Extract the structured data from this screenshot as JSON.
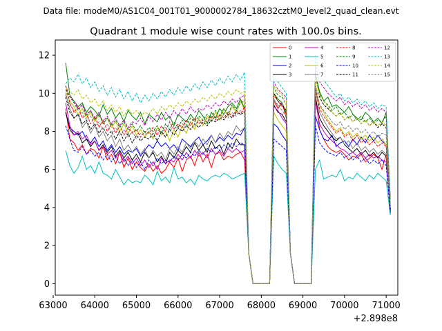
{
  "header": {
    "data_file": "Data file: modeM0/AS1C04_001T01_9000002784_18632cztM0_level2_quad_clean.evt"
  },
  "chart_data": {
    "type": "line",
    "title": "Quadrant 1 module wise count rates with 100.0s bins.",
    "xlabel": "",
    "ylabel": "",
    "x_offset_label": "+2.898e8",
    "xlim": [
      63050,
      71280
    ],
    "ylim": [
      -0.6,
      12.8
    ],
    "xticks": [
      63000,
      64000,
      65000,
      66000,
      67000,
      68000,
      69000,
      70000,
      71000
    ],
    "yticks": [
      0,
      2,
      4,
      6,
      8,
      10,
      12
    ],
    "x_start": 63300,
    "x_step": 100,
    "gap_segment_values": [
      1.6,
      0,
      0,
      0,
      0,
      0
    ],
    "gap_segment_start_index": 44,
    "legend_position": "top-right",
    "series": [
      {
        "name": "0",
        "color": "#ff0000",
        "dash": "solid",
        "seg1": [
          9.2,
          7.6,
          7.4,
          7.0,
          7.3,
          6.8,
          7.1,
          7.0,
          6.6,
          7.2,
          6.5,
          6.8,
          6.3,
          6.9,
          6.1,
          6.6,
          6.0,
          6.4,
          6.1,
          5.9,
          6.3,
          5.9,
          6.2,
          5.8,
          6.0,
          6.4,
          6.1,
          6.6,
          5.9,
          6.5,
          6.7,
          6.2,
          6.9,
          6.4,
          6.8,
          6.1,
          6.8,
          6.9,
          6.5,
          6.7,
          6.6,
          6.8,
          6.9,
          6.5
        ],
        "seg2": [
          9.6,
          9.2,
          9.5,
          8.7
        ],
        "seg3": [
          10.0,
          8.1,
          7.6,
          7.2,
          7.0,
          6.9,
          7.0,
          6.8,
          6.5,
          6.7,
          6.6,
          6.8,
          6.4,
          6.6,
          6.8,
          6.6,
          6.0,
          6.8,
          4.6
        ]
      },
      {
        "name": "1",
        "color": "#008000",
        "dash": "solid",
        "seg1": [
          11.6,
          9.9,
          9.6,
          9.3,
          9.5,
          9.0,
          9.3,
          9.1,
          8.8,
          9.4,
          8.9,
          9.2,
          8.7,
          9.0,
          8.5,
          9.1,
          8.8,
          8.6,
          9.0,
          8.4,
          8.9,
          8.7,
          8.5,
          9.0,
          8.6,
          8.8,
          8.3,
          8.9,
          8.7,
          8.5,
          8.9,
          8.6,
          9.1,
          8.8,
          8.4,
          9.0,
          8.7,
          9.2,
          8.9,
          9.3,
          9.5,
          9.2,
          9.7,
          9.2
        ],
        "seg2": [
          10.0,
          9.7,
          9.5,
          8.9
        ],
        "seg3": [
          11.0,
          10.1,
          9.6,
          9.8,
          9.3,
          9.4,
          9.2,
          9.0,
          9.3,
          8.9,
          8.7,
          8.6,
          9.0,
          8.8,
          8.5,
          8.7,
          8.4,
          9.0,
          3.8
        ]
      },
      {
        "name": "2",
        "color": "#0000ff",
        "dash": "solid",
        "seg1": [
          9.0,
          8.2,
          8.0,
          7.8,
          8.0,
          7.6,
          7.4,
          7.7,
          7.2,
          7.5,
          7.0,
          7.3,
          6.9,
          7.2,
          6.8,
          7.0,
          6.9,
          7.1,
          6.7,
          7.0,
          7.3,
          7.1,
          7.5,
          7.2,
          7.4,
          7.1,
          7.3,
          7.0,
          7.6,
          7.4,
          7.2,
          7.5,
          7.7,
          7.3,
          7.5,
          7.8,
          7.4,
          7.7,
          7.5,
          7.8,
          7.6,
          7.9,
          7.8,
          8.2
        ],
        "seg2": [
          8.4,
          8.2,
          7.8,
          7.5
        ],
        "seg3": [
          8.8,
          8.1,
          7.6,
          7.5,
          7.8,
          7.2,
          7.4,
          7.5,
          7.2,
          7.6,
          7.3,
          7.7,
          7.4,
          7.8,
          7.5,
          7.8,
          7.5,
          7.3,
          3.9
        ]
      },
      {
        "name": "3",
        "color": "#000000",
        "dash": "solid",
        "seg1": [
          9.0,
          8.1,
          7.8,
          7.9,
          7.4,
          7.6,
          7.2,
          7.5,
          7.0,
          7.3,
          6.9,
          7.2,
          6.7,
          7.0,
          6.6,
          6.9,
          6.5,
          6.8,
          6.4,
          6.9,
          6.6,
          6.9,
          6.4,
          6.7,
          6.3,
          6.9,
          6.6,
          7.0,
          6.8,
          7.2,
          6.9,
          7.4,
          7.0,
          7.3,
          6.9,
          7.5,
          7.1,
          7.3,
          6.8,
          7.4,
          7.1,
          7.6,
          7.3,
          7.3
        ],
        "seg2": [
          9.4,
          9.0,
          8.9,
          8.5
        ],
        "seg3": [
          9.8,
          8.7,
          8.3,
          8.0,
          7.7,
          7.5,
          7.7,
          7.3,
          7.1,
          6.9,
          7.1,
          6.8,
          7.0,
          6.7,
          6.9,
          6.6,
          6.9,
          6.7,
          3.8
        ]
      },
      {
        "name": "4",
        "color": "#c000c0",
        "dash": "solid",
        "seg1": [
          9.5,
          8.3,
          7.8,
          8.0,
          7.6,
          7.8,
          7.3,
          7.5,
          7.0,
          7.2,
          6.8,
          7.0,
          6.6,
          6.9,
          6.4,
          6.7,
          6.3,
          6.6,
          6.2,
          6.5,
          6.1,
          6.4,
          6.0,
          6.6,
          6.3,
          6.5,
          6.4,
          6.8,
          6.5,
          6.9,
          6.6,
          7.0,
          6.7,
          6.9,
          6.6,
          7.1,
          6.8,
          7.0,
          6.7,
          7.1,
          6.9,
          7.1,
          6.9,
          7.0
        ],
        "seg2": [
          9.3,
          9.1,
          8.7,
          8.4
        ],
        "seg3": [
          9.6,
          8.4,
          8.0,
          7.7,
          7.5,
          7.3,
          7.1,
          7.0,
          6.8,
          6.9,
          6.7,
          6.9,
          6.6,
          6.8,
          6.6,
          6.7,
          6.5,
          6.4,
          4.0
        ]
      },
      {
        "name": "5",
        "color": "#00bfbf",
        "dash": "solid",
        "seg1": [
          7.0,
          6.2,
          5.8,
          6.1,
          6.7,
          6.0,
          6.2,
          5.8,
          6.4,
          5.8,
          5.7,
          5.5,
          6.0,
          5.6,
          5.2,
          5.5,
          5.3,
          5.4,
          5.3,
          5.7,
          5.5,
          5.2,
          5.9,
          5.4,
          5.6,
          5.3,
          6.1,
          5.5,
          5.6,
          5.3,
          5.5,
          5.2,
          5.7,
          5.5,
          5.4,
          5.6,
          5.7,
          5.6,
          5.8,
          5.7,
          5.5,
          5.6,
          5.7,
          5.8
        ],
        "seg2": [
          6.7,
          6.3,
          6.0,
          5.8
        ],
        "seg3": [
          6.0,
          6.5,
          5.5,
          5.6,
          5.7,
          5.6,
          6.0,
          5.4,
          5.6,
          5.5,
          5.8,
          5.6,
          5.4,
          5.7,
          5.5,
          5.8,
          5.6,
          5.4,
          3.6
        ]
      },
      {
        "name": "6",
        "color": "#bfbf00",
        "dash": "solid",
        "seg1": [
          10.1,
          9.6,
          9.3,
          8.9,
          9.2,
          8.7,
          9.0,
          8.5,
          8.9,
          8.4,
          8.7,
          8.2,
          8.5,
          8.0,
          8.4,
          7.9,
          8.3,
          7.8,
          8.1,
          7.7,
          8.0,
          7.6,
          8.2,
          7.8,
          8.0,
          7.5,
          8.1,
          7.7,
          8.3,
          7.9,
          8.5,
          8.1,
          8.7,
          8.3,
          8.8,
          8.5,
          9.0,
          8.6,
          9.2,
          8.8,
          9.3,
          9.0,
          9.6,
          9.1
        ],
        "seg2": [
          9.0,
          8.6,
          8.3,
          8.0
        ],
        "seg3": [
          10.5,
          9.4,
          9.0,
          8.6,
          8.3,
          8.0,
          8.2,
          7.8,
          8.0,
          7.7,
          7.9,
          7.6,
          7.8,
          7.5,
          7.7,
          7.4,
          7.6,
          7.3,
          4.2
        ]
      },
      {
        "name": "7",
        "color": "#7f7f7f",
        "dash": "solid",
        "seg1": [
          10.0,
          9.2,
          8.7,
          8.9,
          8.2,
          8.5,
          7.9,
          8.3,
          7.7,
          8.0,
          7.5,
          7.8,
          7.2,
          7.6,
          7.0,
          7.3,
          6.9,
          7.2,
          6.8,
          7.1,
          6.6,
          7.0,
          6.7,
          6.9,
          6.5,
          7.1,
          6.8,
          7.2,
          6.9,
          7.4,
          7.1,
          7.5,
          7.2,
          7.6,
          7.3,
          7.8,
          7.4,
          7.9,
          7.6,
          8.0,
          7.8,
          8.3,
          8.0,
          8.2
        ],
        "seg2": [
          9.7,
          9.3,
          9.5,
          9.0
        ],
        "seg3": [
          10.3,
          9.0,
          8.6,
          8.2,
          7.9,
          7.6,
          7.7,
          7.3,
          7.5,
          7.1,
          7.4,
          7.0,
          7.2,
          6.9,
          7.1,
          6.8,
          7.0,
          6.8,
          4.1
        ]
      },
      {
        "name": "8",
        "color": "#ff0000",
        "dash": "dashed",
        "seg1": [
          10.4,
          9.5,
          9.0,
          9.3,
          8.7,
          8.9,
          8.4,
          8.8,
          8.2,
          8.6,
          8.0,
          8.4,
          7.9,
          8.3,
          7.8,
          8.2,
          7.9,
          8.1,
          7.7,
          8.0,
          7.9,
          8.2,
          7.8,
          8.3,
          8.0,
          8.5,
          8.1,
          8.4,
          8.2,
          8.6,
          8.3,
          8.7,
          8.4,
          8.6,
          8.5,
          8.8,
          8.6,
          8.9,
          8.7,
          9.0,
          8.8,
          9.1,
          8.9,
          9.3
        ],
        "seg2": [
          9.9,
          9.6,
          9.3,
          9.0
        ],
        "seg3": [
          10.2,
          9.2,
          8.8,
          8.5,
          8.2,
          7.9,
          8.1,
          7.7,
          7.9,
          7.5,
          7.8,
          7.4,
          7.6,
          7.3,
          7.5,
          7.2,
          7.4,
          7.2,
          4.3
        ]
      },
      {
        "name": "9",
        "color": "#008000",
        "dash": "dashed",
        "seg1": [
          10.2,
          9.8,
          9.5,
          9.1,
          9.4,
          8.8,
          9.1,
          8.6,
          8.9,
          8.4,
          8.7,
          8.3,
          8.6,
          8.2,
          8.5,
          8.1,
          8.4,
          8.0,
          8.3,
          7.9,
          8.2,
          8.0,
          8.3,
          7.9,
          8.4,
          8.1,
          8.5,
          8.2,
          8.6,
          8.3,
          8.7,
          8.5,
          8.8,
          8.6,
          8.9,
          8.7,
          9.1,
          8.8,
          9.2,
          8.9,
          9.4,
          9.1,
          9.5,
          9.6
        ],
        "seg2": [
          10.3,
          9.9,
          9.8,
          9.4
        ],
        "seg3": [
          11.2,
          10.0,
          9.6,
          9.4,
          9.1,
          9.3,
          8.9,
          9.0,
          8.7,
          8.9,
          8.6,
          8.8,
          8.5,
          8.7,
          8.4,
          8.6,
          8.5,
          8.8,
          3.9
        ]
      },
      {
        "name": "10",
        "color": "#0000ff",
        "dash": "dashed",
        "seg1": [
          8.3,
          7.6,
          7.0,
          6.9,
          7.2,
          6.8,
          7.0,
          6.7,
          6.9,
          6.5,
          6.8,
          6.4,
          6.7,
          6.3,
          6.6,
          6.2,
          6.5,
          6.1,
          6.4,
          6.0,
          6.5,
          6.2,
          6.6,
          6.3,
          6.5,
          6.4,
          6.7,
          6.5,
          6.8,
          6.6,
          6.9,
          6.7,
          7.0,
          6.8,
          7.1,
          6.9,
          7.2,
          7.0,
          7.3,
          7.1,
          7.4,
          7.2,
          7.4,
          7.3
        ],
        "seg2": [
          7.6,
          7.4,
          7.2,
          7.0
        ],
        "seg3": [
          8.3,
          7.4,
          7.1,
          6.9,
          6.8,
          6.7,
          6.9,
          6.6,
          6.8,
          6.5,
          6.7,
          6.4,
          6.6,
          6.3,
          6.5,
          6.3,
          6.5,
          6.2,
          3.7
        ]
      },
      {
        "name": "11",
        "color": "#000000",
        "dash": "dashed",
        "seg1": [
          9.8,
          9.0,
          8.7,
          8.9,
          8.4,
          8.6,
          8.1,
          8.4,
          7.9,
          8.2,
          7.8,
          8.0,
          7.6,
          8.0,
          7.5,
          7.9,
          7.4,
          7.8,
          7.5,
          7.7,
          7.6,
          7.9,
          7.5,
          8.0,
          7.7,
          8.1,
          7.8,
          8.2,
          8.0,
          8.3,
          8.1,
          8.4,
          8.2,
          8.5,
          8.3,
          8.6,
          8.5,
          8.7,
          8.6,
          8.9,
          8.7,
          9.0,
          8.9,
          9.0
        ],
        "seg2": [
          10.0,
          9.6,
          9.4,
          9.1
        ],
        "seg3": [
          11.0,
          9.8,
          9.4,
          9.2,
          9.0,
          8.8,
          9.0,
          8.6,
          8.8,
          8.5,
          8.7,
          8.4,
          8.6,
          8.3,
          8.5,
          8.2,
          8.4,
          8.2,
          3.9
        ]
      },
      {
        "name": "12",
        "color": "#c000c0",
        "dash": "dashed",
        "seg1": [
          10.4,
          9.8,
          9.6,
          9.2,
          9.4,
          8.9,
          9.1,
          8.7,
          9.0,
          8.5,
          8.8,
          8.4,
          8.7,
          8.3,
          8.6,
          8.2,
          8.5,
          8.4,
          8.7,
          8.3,
          8.8,
          8.5,
          8.9,
          8.6,
          9.0,
          8.7,
          9.1,
          8.8,
          9.2,
          8.9,
          9.3,
          9.0,
          9.2,
          9.1,
          9.4,
          9.2,
          9.5,
          9.3,
          9.6,
          9.4,
          9.7,
          9.5,
          9.8,
          9.9
        ],
        "seg2": [
          10.6,
          10.2,
          10.0,
          9.8
        ],
        "seg3": [
          11.5,
          10.6,
          10.3,
          10.0,
          9.8,
          9.6,
          9.8,
          9.4,
          9.6,
          9.3,
          9.5,
          9.2,
          9.4,
          9.1,
          9.3,
          9.0,
          9.2,
          9.0,
          4.4
        ]
      },
      {
        "name": "13",
        "color": "#00bfbf",
        "dash": "dashed",
        "seg1": [
          10.5,
          10.8,
          10.6,
          11.0,
          10.5,
          10.8,
          10.3,
          10.6,
          10.1,
          10.4,
          9.9,
          10.3,
          9.8,
          10.2,
          9.7,
          10.1,
          9.6,
          10.0,
          9.5,
          9.9,
          9.6,
          10.0,
          9.7,
          10.1,
          9.8,
          10.2,
          9.9,
          10.3,
          10.0,
          10.4,
          10.1,
          10.5,
          10.2,
          10.6,
          10.3,
          10.7,
          10.4,
          10.8,
          10.5,
          10.9,
          10.6,
          11.0,
          10.7,
          11.1
        ],
        "seg2": [
          10.9,
          10.6,
          10.3,
          10.0
        ],
        "seg3": [
          12.0,
          11.0,
          10.7,
          10.4,
          10.1,
          9.8,
          10.0,
          9.6,
          9.8,
          9.5,
          9.7,
          9.4,
          9.6,
          9.3,
          9.5,
          9.2,
          9.4,
          9.3,
          4.5
        ]
      },
      {
        "name": "14",
        "color": "#bfbf00",
        "dash": "dashed",
        "seg1": [
          10.3,
          10.1,
          9.9,
          10.2,
          9.7,
          9.9,
          9.5,
          9.7,
          9.3,
          9.6,
          9.1,
          9.4,
          9.0,
          9.3,
          8.8,
          9.2,
          8.9,
          9.1,
          8.8,
          9.0,
          8.9,
          9.2,
          8.9,
          9.3,
          9.1,
          9.4,
          9.2,
          9.5,
          9.3,
          9.6,
          9.4,
          9.7,
          9.5,
          9.8,
          9.6,
          9.9,
          9.7,
          10.0,
          9.8,
          10.1,
          9.9,
          10.2,
          10.0,
          10.1
        ],
        "seg2": [
          10.4,
          10.1,
          9.9,
          9.6
        ],
        "seg3": [
          10.8,
          9.9,
          9.6,
          9.3,
          9.0,
          8.8,
          9.0,
          8.6,
          8.8,
          8.5,
          8.7,
          8.4,
          8.6,
          8.3,
          8.5,
          8.3,
          8.5,
          8.3,
          4.2
        ]
      },
      {
        "name": "15",
        "color": "#7f7f7f",
        "dash": "dashed",
        "seg1": [
          9.9,
          9.4,
          9.1,
          8.8,
          9.0,
          8.6,
          8.8,
          8.3,
          8.5,
          8.1,
          8.4,
          7.9,
          8.2,
          7.8,
          8.1,
          7.7,
          8.0,
          7.6,
          7.9,
          7.8,
          8.0,
          7.7,
          8.1,
          7.9,
          8.2,
          8.0,
          8.3,
          8.1,
          8.4,
          8.2,
          8.5,
          8.3,
          8.6,
          8.4,
          8.7,
          8.5,
          8.8,
          8.6,
          8.9,
          8.7,
          9.0,
          8.8,
          9.1,
          9.0
        ],
        "seg2": [
          9.7,
          9.4,
          9.1,
          8.8
        ],
        "seg3": [
          10.4,
          9.4,
          9.1,
          8.8,
          8.5,
          8.3,
          8.5,
          8.1,
          8.3,
          8.0,
          8.2,
          7.9,
          8.1,
          7.8,
          8.0,
          7.7,
          7.9,
          7.8,
          4.0
        ]
      }
    ]
  }
}
